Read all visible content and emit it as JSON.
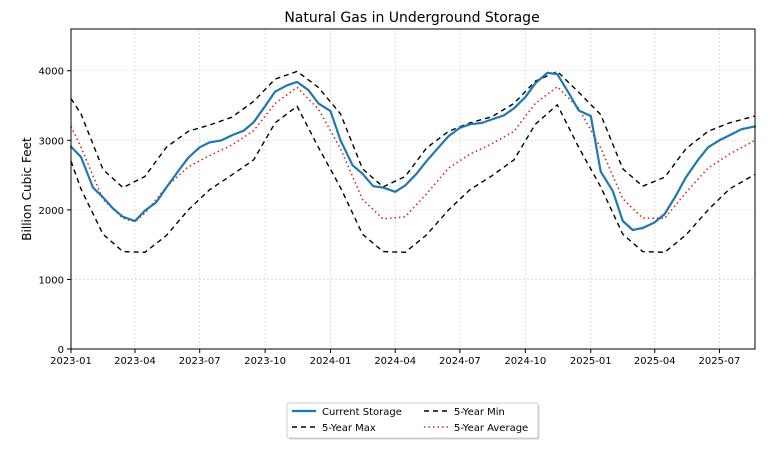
{
  "chart_data": {
    "type": "line",
    "title": "Natural Gas in Underground Storage",
    "xlabel": "",
    "ylabel": "Billion Cubic Feet",
    "ylim": [
      0,
      4600
    ],
    "xlim": [
      "2023-01-01",
      "2025-08-20"
    ],
    "grid": true,
    "legend_position": "bottom-center",
    "y_ticks": [
      0,
      1000,
      2000,
      3000,
      4000
    ],
    "x_ticks": [
      {
        "date": "2023-01-01",
        "label": "2023-01"
      },
      {
        "date": "2023-04-01",
        "label": "2023-04"
      },
      {
        "date": "2023-07-01",
        "label": "2023-07"
      },
      {
        "date": "2023-10-01",
        "label": "2023-10"
      },
      {
        "date": "2024-01-01",
        "label": "2024-01"
      },
      {
        "date": "2024-04-01",
        "label": "2024-04"
      },
      {
        "date": "2024-07-01",
        "label": "2024-07"
      },
      {
        "date": "2024-10-01",
        "label": "2024-10"
      },
      {
        "date": "2025-01-01",
        "label": "2025-01"
      },
      {
        "date": "2025-04-01",
        "label": "2025-04"
      },
      {
        "date": "2025-07-01",
        "label": "2025-07"
      }
    ],
    "series": [
      {
        "name": "Current Storage",
        "color": "#1f77b4",
        "style": "solid",
        "points": [
          [
            "2023-01-01",
            2910
          ],
          [
            "2023-01-15",
            2760
          ],
          [
            "2023-02-01",
            2320
          ],
          [
            "2023-02-15",
            2180
          ],
          [
            "2023-03-01",
            2020
          ],
          [
            "2023-03-15",
            1900
          ],
          [
            "2023-04-01",
            1840
          ],
          [
            "2023-04-15",
            1990
          ],
          [
            "2023-05-01",
            2110
          ],
          [
            "2023-05-15",
            2320
          ],
          [
            "2023-06-01",
            2560
          ],
          [
            "2023-06-15",
            2750
          ],
          [
            "2023-07-01",
            2900
          ],
          [
            "2023-07-15",
            2970
          ],
          [
            "2023-08-01",
            3000
          ],
          [
            "2023-08-15",
            3070
          ],
          [
            "2023-09-01",
            3140
          ],
          [
            "2023-09-15",
            3260
          ],
          [
            "2023-10-01",
            3490
          ],
          [
            "2023-10-15",
            3700
          ],
          [
            "2023-11-01",
            3790
          ],
          [
            "2023-11-15",
            3840
          ],
          [
            "2023-12-01",
            3720
          ],
          [
            "2023-12-15",
            3530
          ],
          [
            "2024-01-01",
            3420
          ],
          [
            "2024-01-15",
            3000
          ],
          [
            "2024-02-01",
            2640
          ],
          [
            "2024-02-15",
            2520
          ],
          [
            "2024-03-01",
            2340
          ],
          [
            "2024-03-15",
            2320
          ],
          [
            "2024-04-01",
            2260
          ],
          [
            "2024-04-15",
            2350
          ],
          [
            "2024-05-01",
            2520
          ],
          [
            "2024-05-15",
            2700
          ],
          [
            "2024-06-01",
            2900
          ],
          [
            "2024-06-15",
            3060
          ],
          [
            "2024-07-01",
            3180
          ],
          [
            "2024-07-15",
            3230
          ],
          [
            "2024-08-01",
            3250
          ],
          [
            "2024-08-15",
            3300
          ],
          [
            "2024-09-01",
            3360
          ],
          [
            "2024-09-15",
            3460
          ],
          [
            "2024-10-01",
            3620
          ],
          [
            "2024-10-15",
            3820
          ],
          [
            "2024-11-01",
            3970
          ],
          [
            "2024-11-15",
            3950
          ],
          [
            "2024-12-01",
            3680
          ],
          [
            "2024-12-15",
            3430
          ],
          [
            "2025-01-01",
            3350
          ],
          [
            "2025-01-15",
            2550
          ],
          [
            "2025-02-01",
            2270
          ],
          [
            "2025-02-15",
            1840
          ],
          [
            "2025-03-01",
            1710
          ],
          [
            "2025-03-15",
            1740
          ],
          [
            "2025-04-01",
            1820
          ],
          [
            "2025-04-15",
            1940
          ],
          [
            "2025-05-01",
            2210
          ],
          [
            "2025-05-15",
            2470
          ],
          [
            "2025-06-01",
            2720
          ],
          [
            "2025-06-15",
            2900
          ],
          [
            "2025-07-01",
            3000
          ],
          [
            "2025-07-15",
            3070
          ],
          [
            "2025-08-01",
            3160
          ],
          [
            "2025-08-20",
            3200
          ]
        ]
      },
      {
        "name": "5-Year Max",
        "color": "#000000",
        "style": "dashed",
        "points": [
          [
            "2023-01-01",
            3600
          ],
          [
            "2023-01-15",
            3380
          ],
          [
            "2023-02-15",
            2580
          ],
          [
            "2023-03-15",
            2320
          ],
          [
            "2023-04-15",
            2480
          ],
          [
            "2023-05-15",
            2900
          ],
          [
            "2023-06-15",
            3130
          ],
          [
            "2023-07-15",
            3220
          ],
          [
            "2023-08-15",
            3330
          ],
          [
            "2023-09-15",
            3560
          ],
          [
            "2023-10-15",
            3880
          ],
          [
            "2023-11-15",
            3990
          ],
          [
            "2023-12-15",
            3760
          ],
          [
            "2024-01-15",
            3380
          ],
          [
            "2024-02-15",
            2590
          ],
          [
            "2024-03-15",
            2330
          ],
          [
            "2024-04-15",
            2480
          ],
          [
            "2024-05-15",
            2890
          ],
          [
            "2024-06-15",
            3130
          ],
          [
            "2024-07-15",
            3250
          ],
          [
            "2024-08-15",
            3340
          ],
          [
            "2024-09-15",
            3530
          ],
          [
            "2024-10-15",
            3850
          ],
          [
            "2024-11-15",
            3990
          ],
          [
            "2024-12-15",
            3690
          ],
          [
            "2025-01-15",
            3370
          ],
          [
            "2025-02-15",
            2590
          ],
          [
            "2025-03-15",
            2340
          ],
          [
            "2025-04-15",
            2470
          ],
          [
            "2025-05-15",
            2880
          ],
          [
            "2025-06-15",
            3130
          ],
          [
            "2025-07-15",
            3250
          ],
          [
            "2025-08-20",
            3350
          ]
        ]
      },
      {
        "name": "5-Year Min",
        "color": "#000000",
        "style": "dashed",
        "points": [
          [
            "2023-01-01",
            2700
          ],
          [
            "2023-01-15",
            2300
          ],
          [
            "2023-02-15",
            1650
          ],
          [
            "2023-03-15",
            1400
          ],
          [
            "2023-04-15",
            1390
          ],
          [
            "2023-05-15",
            1630
          ],
          [
            "2023-06-15",
            2000
          ],
          [
            "2023-07-15",
            2290
          ],
          [
            "2023-08-15",
            2500
          ],
          [
            "2023-09-15",
            2720
          ],
          [
            "2023-10-15",
            3250
          ],
          [
            "2023-11-15",
            3490
          ],
          [
            "2023-12-15",
            2900
          ],
          [
            "2024-01-15",
            2320
          ],
          [
            "2024-02-15",
            1650
          ],
          [
            "2024-03-15",
            1400
          ],
          [
            "2024-04-15",
            1390
          ],
          [
            "2024-05-15",
            1640
          ],
          [
            "2024-06-15",
            2000
          ],
          [
            "2024-07-15",
            2290
          ],
          [
            "2024-08-15",
            2490
          ],
          [
            "2024-09-15",
            2720
          ],
          [
            "2024-10-15",
            3230
          ],
          [
            "2024-11-15",
            3510
          ],
          [
            "2024-12-15",
            2900
          ],
          [
            "2025-01-15",
            2330
          ],
          [
            "2025-02-15",
            1650
          ],
          [
            "2025-03-15",
            1400
          ],
          [
            "2025-04-15",
            1390
          ],
          [
            "2025-05-15",
            1640
          ],
          [
            "2025-06-15",
            2000
          ],
          [
            "2025-07-15",
            2300
          ],
          [
            "2025-08-20",
            2510
          ]
        ]
      },
      {
        "name": "5-Year Average",
        "color": "#d62728",
        "style": "dotted",
        "points": [
          [
            "2023-01-01",
            3200
          ],
          [
            "2023-01-15",
            2900
          ],
          [
            "2023-02-15",
            2150
          ],
          [
            "2023-03-15",
            1880
          ],
          [
            "2023-04-01",
            1830
          ],
          [
            "2023-04-15",
            1950
          ],
          [
            "2023-05-15",
            2330
          ],
          [
            "2023-06-15",
            2620
          ],
          [
            "2023-07-15",
            2780
          ],
          [
            "2023-08-15",
            2930
          ],
          [
            "2023-09-15",
            3140
          ],
          [
            "2023-10-15",
            3530
          ],
          [
            "2023-11-15",
            3760
          ],
          [
            "2023-12-15",
            3450
          ],
          [
            "2024-01-15",
            2880
          ],
          [
            "2024-02-15",
            2150
          ],
          [
            "2024-03-15",
            1870
          ],
          [
            "2024-04-15",
            1900
          ],
          [
            "2024-05-15",
            2230
          ],
          [
            "2024-06-15",
            2600
          ],
          [
            "2024-07-15",
            2800
          ],
          [
            "2024-08-15",
            2950
          ],
          [
            "2024-09-15",
            3130
          ],
          [
            "2024-10-15",
            3530
          ],
          [
            "2024-11-15",
            3770
          ],
          [
            "2024-12-15",
            3460
          ],
          [
            "2025-01-15",
            2890
          ],
          [
            "2025-02-15",
            2160
          ],
          [
            "2025-03-15",
            1880
          ],
          [
            "2025-04-15",
            1880
          ],
          [
            "2025-05-15",
            2250
          ],
          [
            "2025-06-15",
            2600
          ],
          [
            "2025-07-15",
            2800
          ],
          [
            "2025-08-20",
            3000
          ]
        ]
      }
    ]
  }
}
